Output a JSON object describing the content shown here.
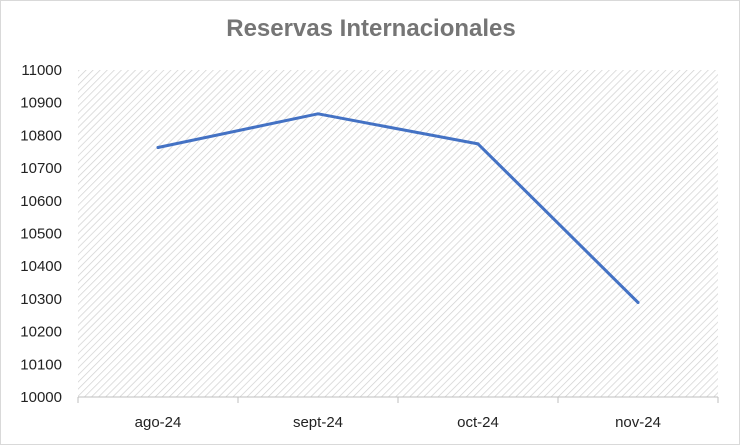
{
  "chart_data": {
    "type": "line",
    "title": "Reservas Internacionales",
    "categories": [
      "ago-24",
      "sept-24",
      "oct-24",
      "nov-24"
    ],
    "series": [
      {
        "values": [
          10763,
          10866,
          10774,
          10289
        ]
      }
    ],
    "ylim": [
      10000,
      11000
    ],
    "yticks": [
      10000,
      10100,
      10200,
      10300,
      10400,
      10500,
      10600,
      10700,
      10800,
      10900,
      11000
    ],
    "xlabel": "",
    "ylabel": "",
    "grid": false,
    "legend": "none",
    "colors": {
      "line": "#4472c4",
      "plot_hatch": "#d0d0d0",
      "axis": "#bfbfbf"
    }
  }
}
